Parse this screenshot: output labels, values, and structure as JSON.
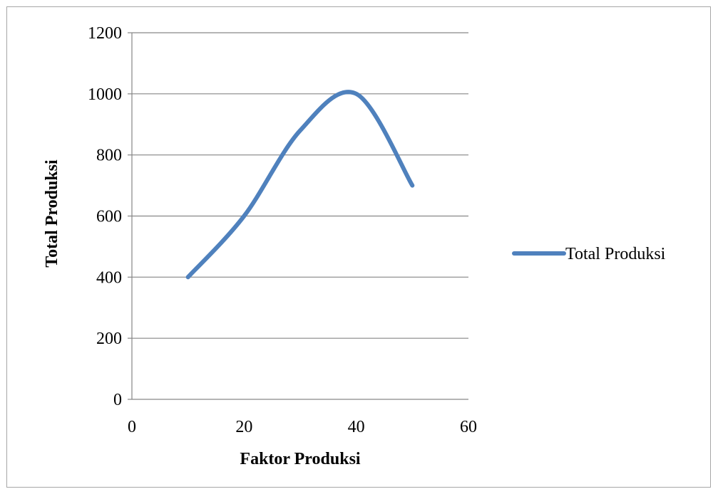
{
  "chart_data": {
    "type": "line",
    "xlabel": "Faktor Produksi",
    "ylabel": "Total Produksi",
    "xlim": [
      0,
      60
    ],
    "ylim": [
      0,
      1200
    ],
    "x_ticks": [
      0,
      20,
      40,
      60
    ],
    "y_ticks": [
      0,
      200,
      400,
      600,
      800,
      1000,
      1200
    ],
    "grid": "horizontal",
    "smooth": true,
    "legend_position": "right",
    "series": [
      {
        "name": "Total Produksi",
        "color": "#4f81bd",
        "x": [
          10,
          20,
          30,
          40,
          50
        ],
        "y": [
          400,
          600,
          880,
          1000,
          700
        ]
      }
    ]
  }
}
